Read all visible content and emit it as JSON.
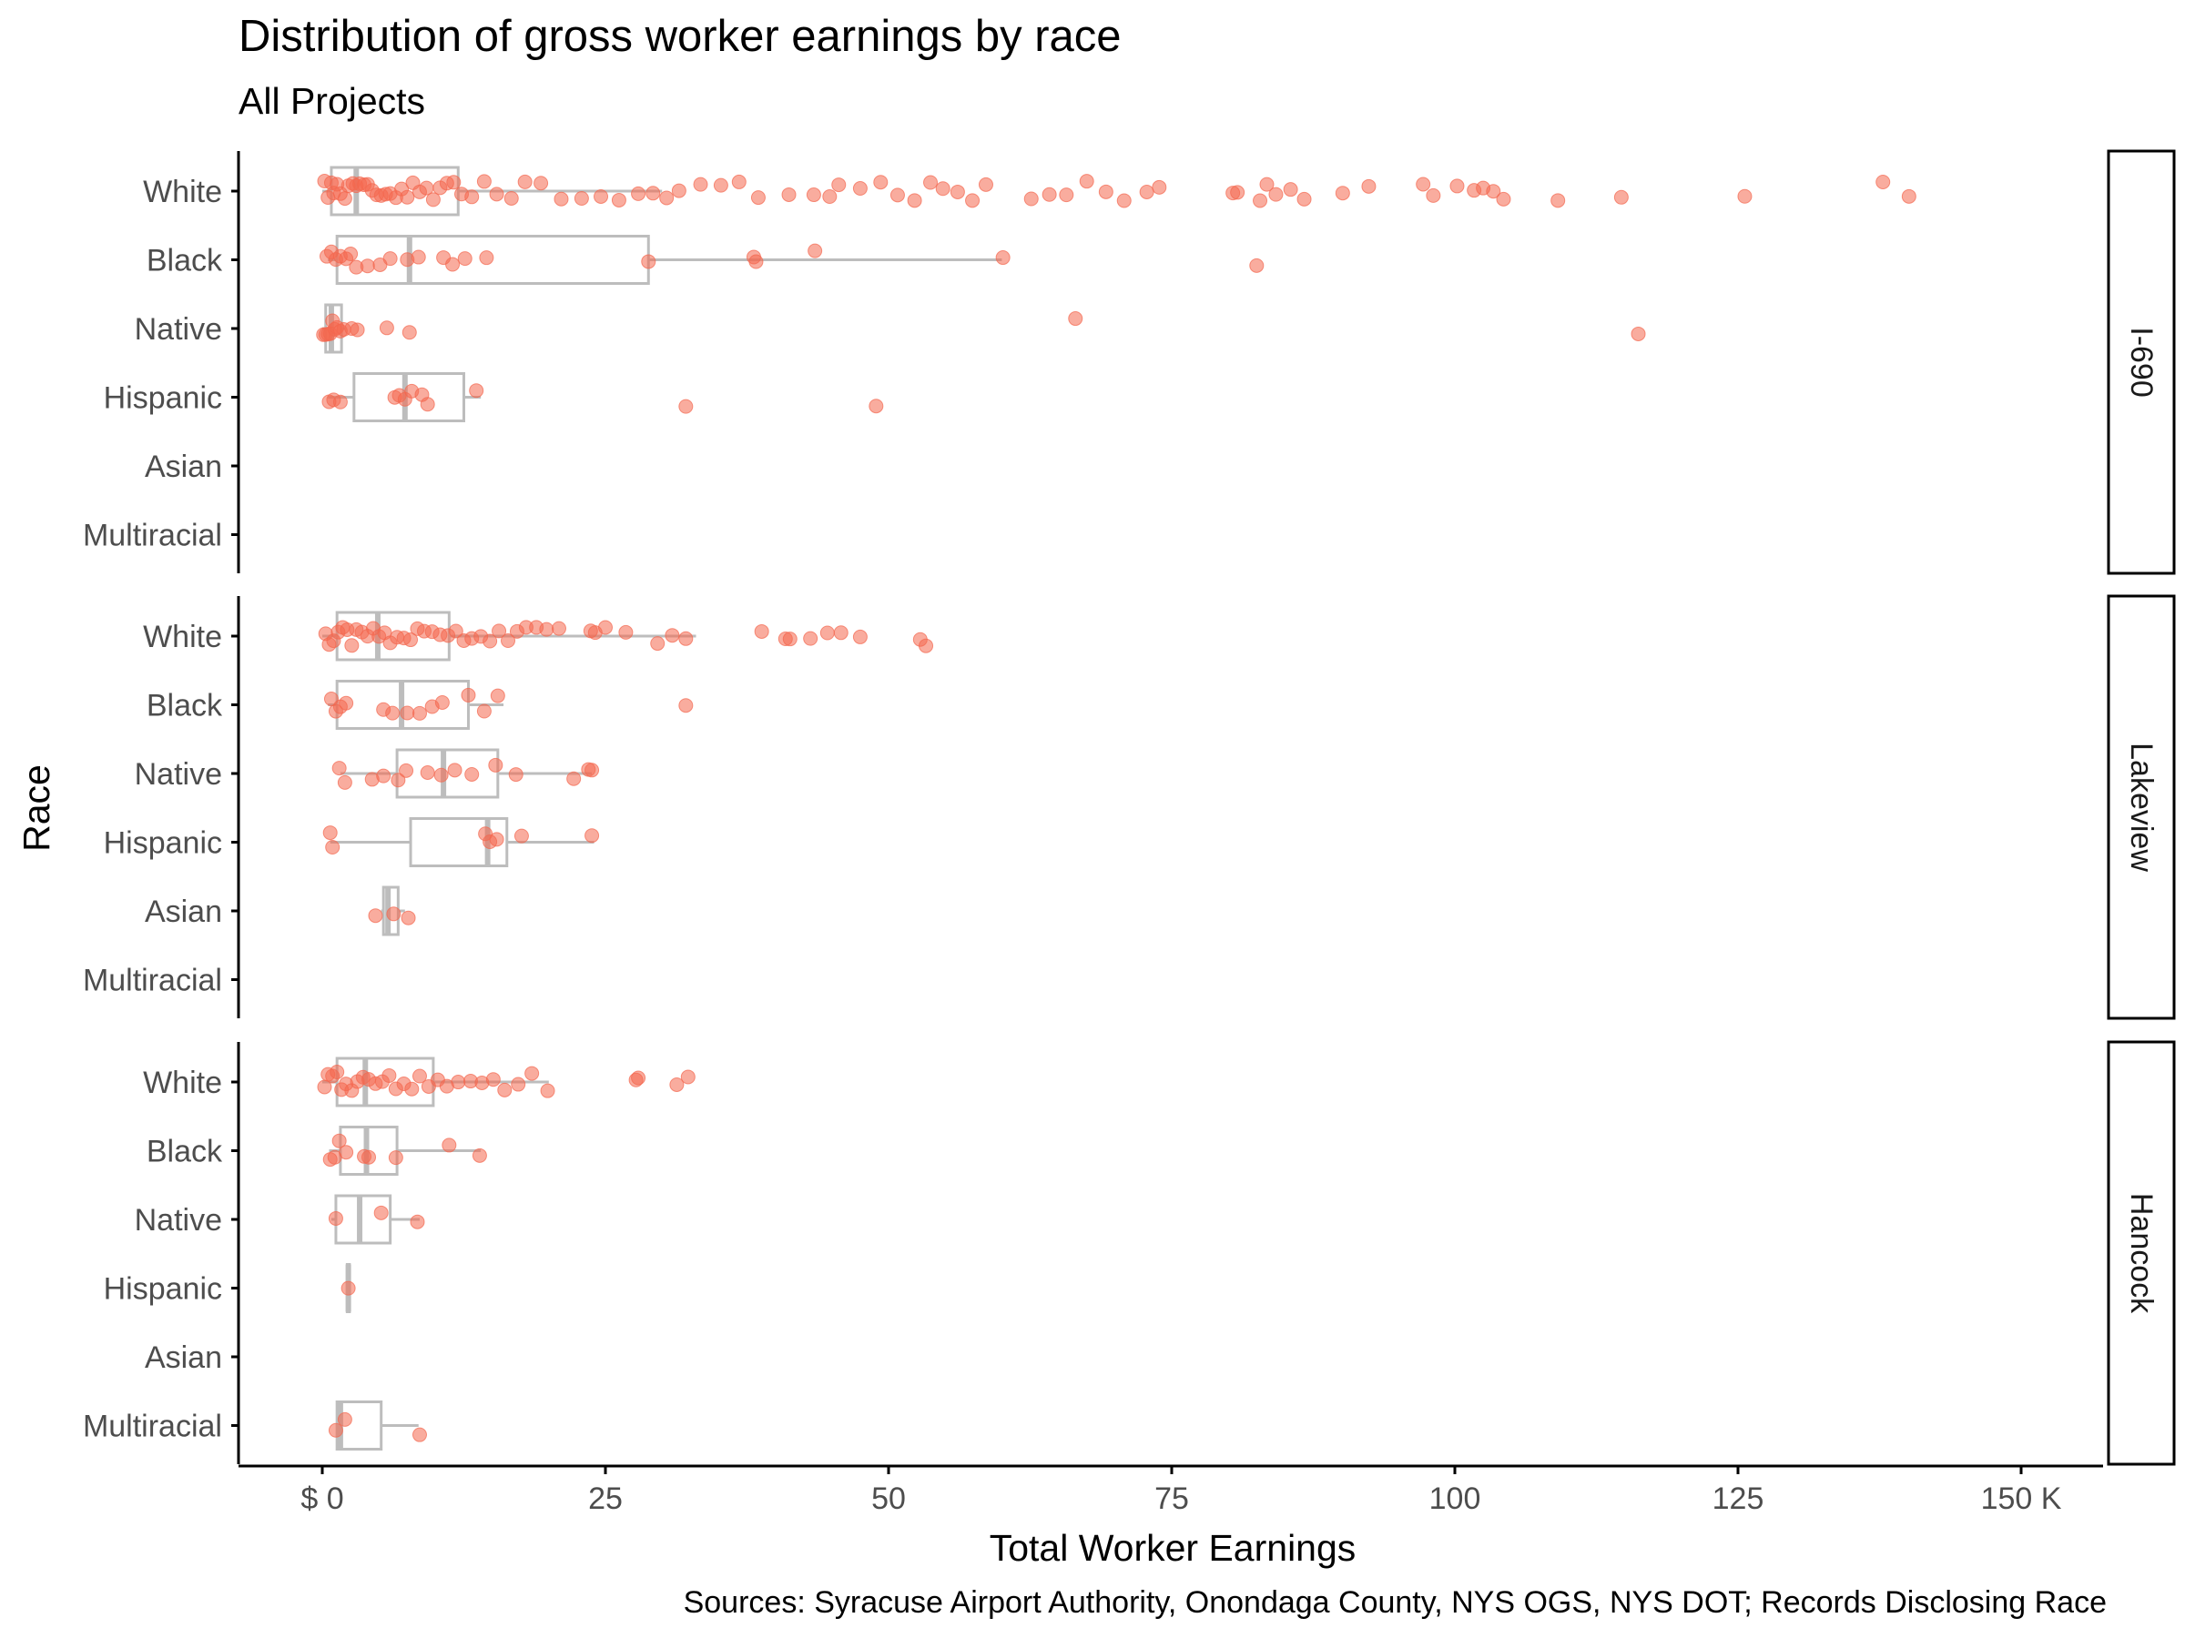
{
  "title": "Distribution of gross worker earnings by race",
  "subtitle": "All Projects",
  "caption": "Sources: Syracuse Airport Authority, Onondaga County, NYS OGS, NYS DOT; Records Disclosing Race",
  "colors": {
    "point": "#f4674e",
    "box": "#bdbdbd",
    "axis": "#000000",
    "text": "#4d4d4d"
  },
  "chart_data": {
    "type": "boxplot-jitter",
    "xlabel": "Total Worker Earnings",
    "ylabel": "Race",
    "xlim": [
      -7,
      158
    ],
    "xticks": [
      0,
      25,
      50,
      75,
      100,
      125,
      150
    ],
    "xtick_labels": [
      "$ 0",
      "25",
      "50",
      "75",
      "100",
      "125",
      "150 K"
    ],
    "categories": [
      "White",
      "Black",
      "Native",
      "Hispanic",
      "Asian",
      "Multiracial"
    ],
    "panels": [
      {
        "name": "I-690",
        "boxes": [
          {
            "race": "White",
            "min": 0,
            "q1": 0.8,
            "median": 3,
            "q3": 12,
            "max": 30
          },
          {
            "race": "Black",
            "min": 0.5,
            "q1": 1.3,
            "median": 7.7,
            "q3": 28.8,
            "max": 60
          },
          {
            "race": "Native",
            "min": 0,
            "q1": 0.3,
            "median": 0.8,
            "q3": 1.7,
            "max": 2
          },
          {
            "race": "Hispanic",
            "min": 0.5,
            "q1": 2.8,
            "median": 7.3,
            "q3": 12.5,
            "max": 14
          }
        ],
        "points": [
          {
            "race": "White",
            "x": [
              0.2,
              0.5,
              0.8,
              1,
              1.3,
              1.6,
              2,
              2.3,
              2.7,
              3,
              3.3,
              3.7,
              4,
              4.4,
              4.8,
              5.2,
              5.6,
              6,
              6.5,
              7,
              7.5,
              8,
              8.6,
              9.2,
              9.8,
              10.4,
              11,
              11.6,
              12.3,
              13.2,
              14.3,
              15.4,
              16.7,
              17.9,
              19.3,
              21.1,
              22.9,
              24.6,
              26.2,
              27.9,
              29.2,
              30.4,
              31.5,
              33.4,
              35.2,
              36.8,
              38.5,
              41.2,
              43.4,
              44.8,
              45.6,
              47.5,
              49.3,
              50.8,
              52.3,
              53.7,
              54.8,
              56.1,
              57.4,
              58.6,
              62.6,
              64.2,
              65.7,
              67.5,
              69.2,
              70.8,
              72.8,
              73.9,
              80.4,
              80.8,
              82.8,
              83.4,
              84.2,
              85.5,
              86.7,
              90.1,
              92.4,
              97.2,
              98.1,
              100.2,
              101.7,
              102.5,
              103.4,
              104.3,
              109.1,
              114.7,
              125.6,
              137.8,
              140.1
            ]
          },
          {
            "race": "Black",
            "x": [
              0.4,
              0.8,
              1.2,
              1.6,
              2.1,
              2.5,
              3,
              4,
              5.1,
              6,
              7.5,
              8.5,
              10.7,
              11.5,
              12.6,
              14.5,
              28.8,
              38.1,
              38.3,
              43.5,
              60.1,
              82.5
            ]
          },
          {
            "race": "Native",
            "x": [
              0.1,
              0.3,
              0.5,
              0.7,
              0.9,
              1.1,
              1.3,
              1.6,
              1.9,
              2.6,
              3.1,
              5.7,
              7.7,
              66.5,
              116.2
            ]
          },
          {
            "race": "Hispanic",
            "x": [
              0.6,
              1,
              1.6,
              6.4,
              6.8,
              7.3,
              7.9,
              8.8,
              9.3,
              13.6,
              32.1,
              48.9
            ]
          }
        ]
      },
      {
        "name": "Lakeview",
        "boxes": [
          {
            "race": "White",
            "min": 0,
            "q1": 1.3,
            "median": 4.9,
            "q3": 11.2,
            "max": 33
          },
          {
            "race": "Black",
            "min": 0.5,
            "q1": 1.3,
            "median": 7,
            "q3": 12.9,
            "max": 16
          },
          {
            "race": "Native",
            "min": 1.6,
            "q1": 6.6,
            "median": 10.7,
            "q3": 15.5,
            "max": 23.8
          },
          {
            "race": "Hispanic",
            "min": 0.7,
            "q1": 7.8,
            "median": 14.6,
            "q3": 16.3,
            "max": 24
          },
          {
            "race": "Asian",
            "min": 5.2,
            "q1": 5.4,
            "median": 5.8,
            "q3": 6.7,
            "max": 7.3
          }
        ],
        "points": [
          {
            "race": "White",
            "x": [
              0.3,
              0.6,
              1,
              1.4,
              1.8,
              2.2,
              2.6,
              3,
              3.5,
              4,
              4.5,
              5,
              5.5,
              6,
              6.6,
              7.2,
              7.8,
              8.4,
              9,
              9.7,
              10.4,
              11.1,
              11.8,
              12.5,
              13.2,
              14,
              14.8,
              15.6,
              16.4,
              17.2,
              18,
              18.9,
              19.8,
              20.9,
              23.7,
              24.1,
              25,
              26.8,
              29.6,
              30.9,
              32.1,
              38.8,
              40.9,
              41.3,
              43.1,
              44.6,
              45.8,
              47.5,
              52.8,
              53.3
            ]
          },
          {
            "race": "Black",
            "x": [
              0.8,
              1.2,
              1.6,
              2.1,
              5.4,
              6.2,
              7.5,
              8.6,
              9.7,
              10.6,
              12.9,
              14.3,
              15.5,
              32.1
            ]
          },
          {
            "race": "Native",
            "x": [
              1.5,
              2,
              4.4,
              5.4,
              6.7,
              7.4,
              9.3,
              10.5,
              11.7,
              13.2,
              15.3,
              17.1,
              22.2,
              23.5,
              23.8
            ]
          },
          {
            "race": "Hispanic",
            "x": [
              0.7,
              0.9,
              14.4,
              14.8,
              15.4,
              17.6,
              23.8
            ]
          },
          {
            "race": "Asian",
            "x": [
              4.7,
              6.3,
              7.6
            ]
          }
        ]
      },
      {
        "name": "Hancock",
        "boxes": [
          {
            "race": "White",
            "min": 0,
            "q1": 1.3,
            "median": 3.8,
            "q3": 9.8,
            "max": 20
          },
          {
            "race": "Black",
            "min": 0.6,
            "q1": 1.6,
            "median": 3.9,
            "q3": 6.6,
            "max": 14
          },
          {
            "race": "Native",
            "min": 0.8,
            "q1": 1.2,
            "median": 3.3,
            "q3": 6,
            "max": 8.6
          },
          {
            "race": "Hispanic",
            "min": 2.2,
            "q1": 2.2,
            "median": 2.3,
            "q3": 2.4,
            "max": 2.4
          },
          {
            "race": "Multiracial",
            "min": 1.2,
            "q1": 1.3,
            "median": 1.6,
            "q3": 5.2,
            "max": 8.5
          }
        ],
        "points": [
          {
            "race": "White",
            "x": [
              0.2,
              0.5,
              0.9,
              1.3,
              1.7,
              2.1,
              2.6,
              3.1,
              3.6,
              4.1,
              4.7,
              5.3,
              5.9,
              6.5,
              7.2,
              7.9,
              8.6,
              9.4,
              10.2,
              11,
              12,
              13.1,
              14.1,
              15.1,
              16.1,
              17.3,
              18.5,
              19.9,
              27.7,
              27.9,
              31.3,
              32.3
            ]
          },
          {
            "race": "Black",
            "x": [
              0.7,
              1.1,
              1.5,
              2.1,
              3.7,
              4.1,
              6.5,
              11.2,
              13.9
            ]
          },
          {
            "race": "Native",
            "x": [
              1.2,
              5.2,
              8.4
            ]
          },
          {
            "race": "Hispanic",
            "x": [
              2.3
            ]
          },
          {
            "race": "Multiracial",
            "x": [
              1.2,
              2,
              8.6
            ]
          }
        ]
      }
    ]
  }
}
